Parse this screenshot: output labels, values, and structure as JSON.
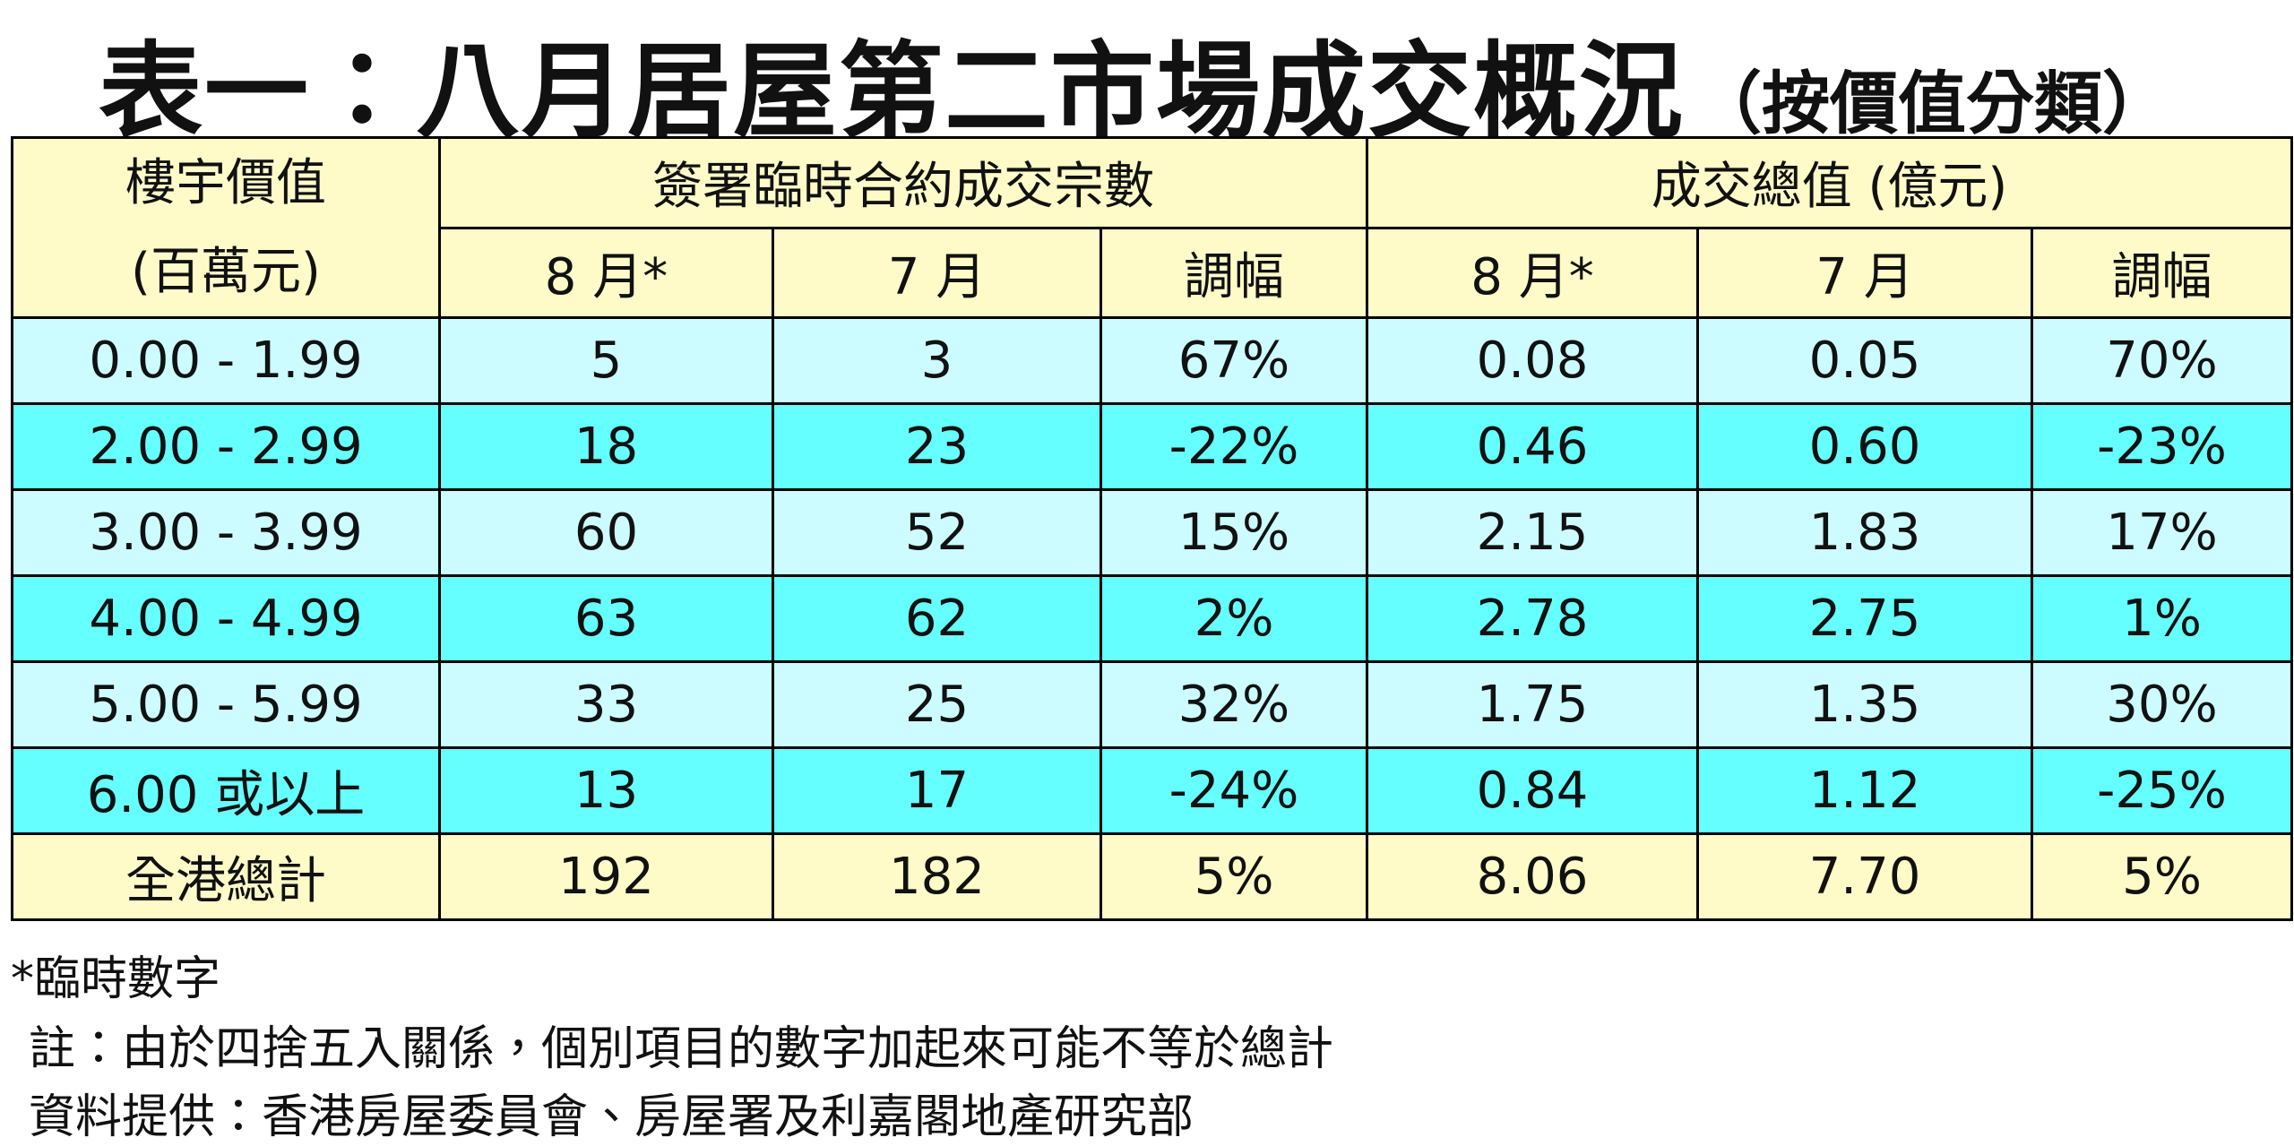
{
  "title": "表一：八月居屋第二市場成交概況",
  "subtitle": "（按價值分類）",
  "table": {
    "header": {
      "first": [
        "樓宇價值",
        "(百萬元)"
      ],
      "groups": [
        "簽署臨時合約成交宗數",
        "成交總值 (億元)"
      ],
      "subheaders": [
        "8 月*",
        "7 月",
        "調幅",
        "8 月*",
        "7 月",
        "調幅"
      ]
    },
    "rows": [
      [
        "0.00 - 1.99",
        "5",
        "3",
        "67%",
        "0.08",
        "0.05",
        "70%"
      ],
      [
        "2.00 - 2.99",
        "18",
        "23",
        "-22%",
        "0.46",
        "0.60",
        "-23%"
      ],
      [
        "3.00 - 3.99",
        "60",
        "52",
        "15%",
        "2.15",
        "1.83",
        "17%"
      ],
      [
        "4.00 - 4.99",
        "63",
        "62",
        "2%",
        "2.78",
        "2.75",
        "1%"
      ],
      [
        "5.00 - 5.99",
        "33",
        "25",
        "32%",
        "1.75",
        "1.35",
        "30%"
      ],
      [
        "6.00 或以上",
        "13",
        "17",
        "-24%",
        "0.84",
        "1.12",
        "-25%"
      ],
      [
        "全港總計",
        "192",
        "182",
        "5%",
        "8.06",
        "7.70",
        "5%"
      ]
    ]
  },
  "notes": [
    "*臨時數字",
    "註：由於四捨五入關係，個別項目的數字加起來可能不等於總計",
    "資料提供：香港房屋委員會、房屋署及利嘉閣地產研究部"
  ]
}
